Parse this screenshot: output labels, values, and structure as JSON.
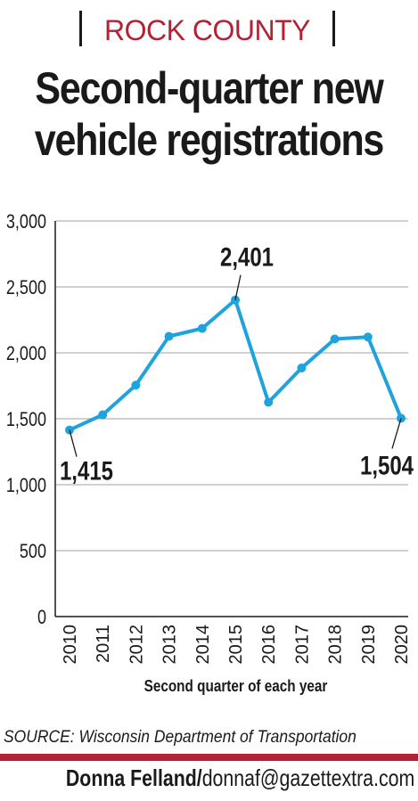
{
  "kicker": "ROCK COUNTY",
  "headline_line1": "Second-quarter new",
  "headline_line2": "vehicle registrations",
  "source": "SOURCE: Wisconsin Department of Transportation",
  "credit_name": "Donna Felland/",
  "credit_email": "donnaf@gazettextra.com",
  "colors": {
    "line": "#1fa3dc",
    "accent": "#b22234",
    "grid": "#b5b5b5"
  },
  "chart_data": {
    "type": "line",
    "title": "Second-quarter new vehicle registrations",
    "xlabel": "Second quarter of each year",
    "ylabel": "",
    "categories": [
      "2010",
      "2011",
      "2012",
      "2013",
      "2014",
      "2015",
      "2016",
      "2017",
      "2018",
      "2019",
      "2020"
    ],
    "values": [
      1415,
      1530,
      1755,
      2125,
      2185,
      2401,
      1625,
      1885,
      2105,
      2120,
      1504
    ],
    "ylim": [
      0,
      3000
    ],
    "yticks": [
      "0",
      "500",
      "1,000",
      "1,500",
      "2,000",
      "2,500",
      "3,000"
    ],
    "ytick_values": [
      0,
      500,
      1000,
      1500,
      2000,
      2500,
      3000
    ],
    "annotations": [
      {
        "index": 0,
        "label": "1,415"
      },
      {
        "index": 5,
        "label": "2,401"
      },
      {
        "index": 10,
        "label": "1,504"
      }
    ],
    "grid": true
  }
}
